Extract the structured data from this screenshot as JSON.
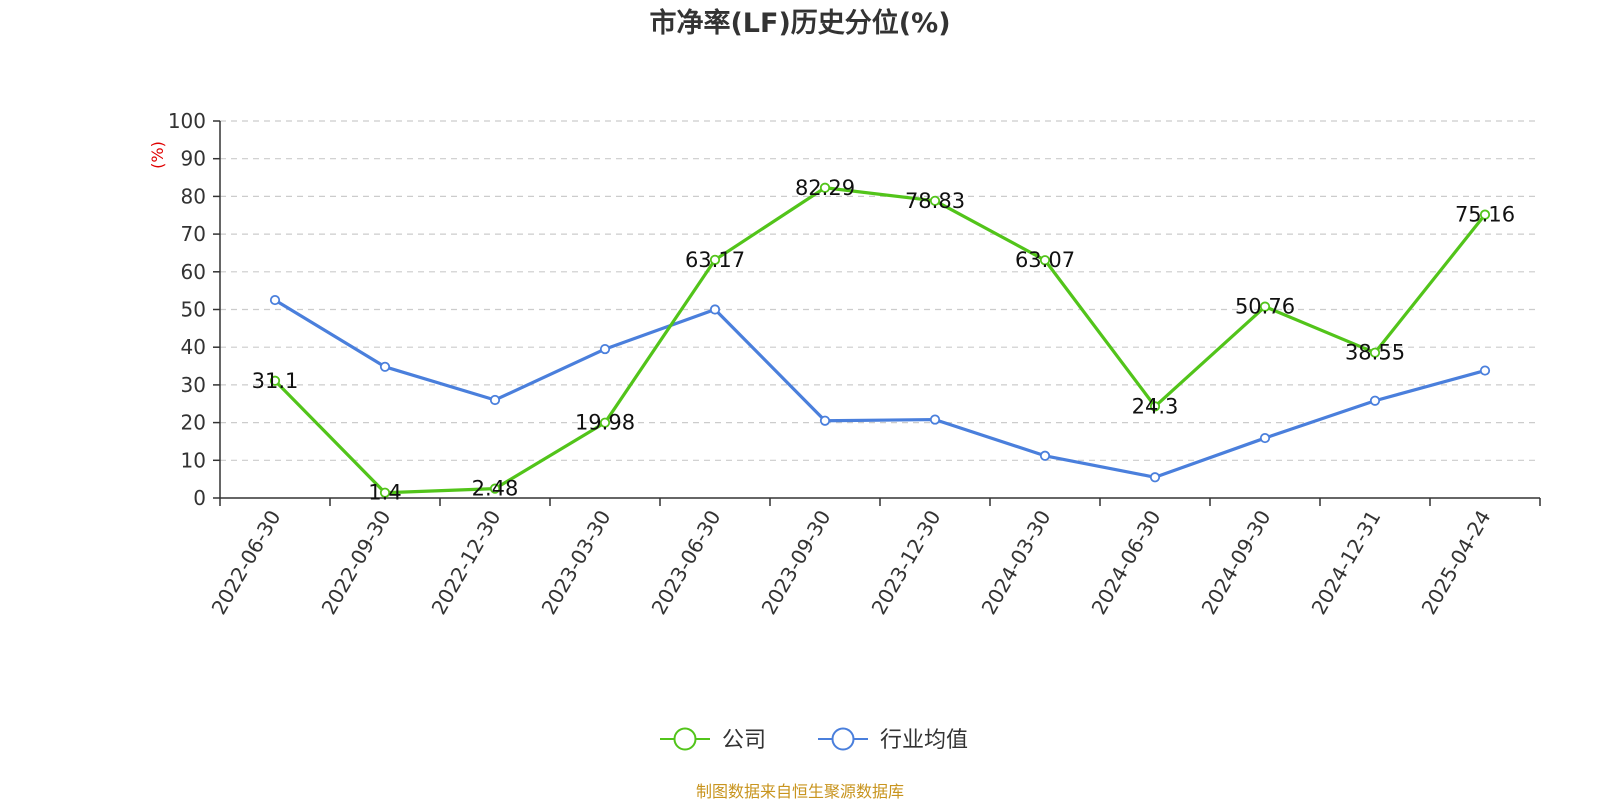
{
  "chart_data": {
    "type": "line",
    "title": "市净率(LF)历史分位(%)",
    "ylabel": "(%)",
    "ylim": [
      0,
      100
    ],
    "yticks": [
      0,
      10,
      20,
      30,
      40,
      50,
      60,
      70,
      80,
      90,
      100
    ],
    "categories": [
      "2022-06-30",
      "2022-09-30",
      "2022-12-30",
      "2023-03-30",
      "2023-06-30",
      "2023-09-30",
      "2023-12-30",
      "2024-03-30",
      "2024-06-30",
      "2024-09-30",
      "2024-12-31",
      "2025-04-24"
    ],
    "series": [
      {
        "name": "公司",
        "color": "#52c41a",
        "values": [
          31.1,
          1.4,
          2.48,
          19.98,
          63.17,
          82.29,
          78.83,
          63.07,
          24.3,
          50.76,
          38.55,
          75.16
        ],
        "labels": [
          "31.1",
          "1.4",
          "2.48",
          "19.98",
          "63.17",
          "82.29",
          "78.83",
          "63.07",
          "24.3",
          "50.76",
          "38.55",
          "75.16"
        ]
      },
      {
        "name": "行业均值",
        "color": "#4a7fdc",
        "values": [
          52.5,
          34.8,
          26.0,
          39.5,
          50.0,
          20.5,
          20.8,
          11.2,
          5.5,
          15.9,
          25.8,
          33.8
        ]
      }
    ],
    "grid": "horizontal-dashed",
    "legend": "bottom-center",
    "ylabel_color": "#e00000"
  },
  "source": "制图数据来自恒生聚源数据库",
  "source_color": "#c8941e"
}
